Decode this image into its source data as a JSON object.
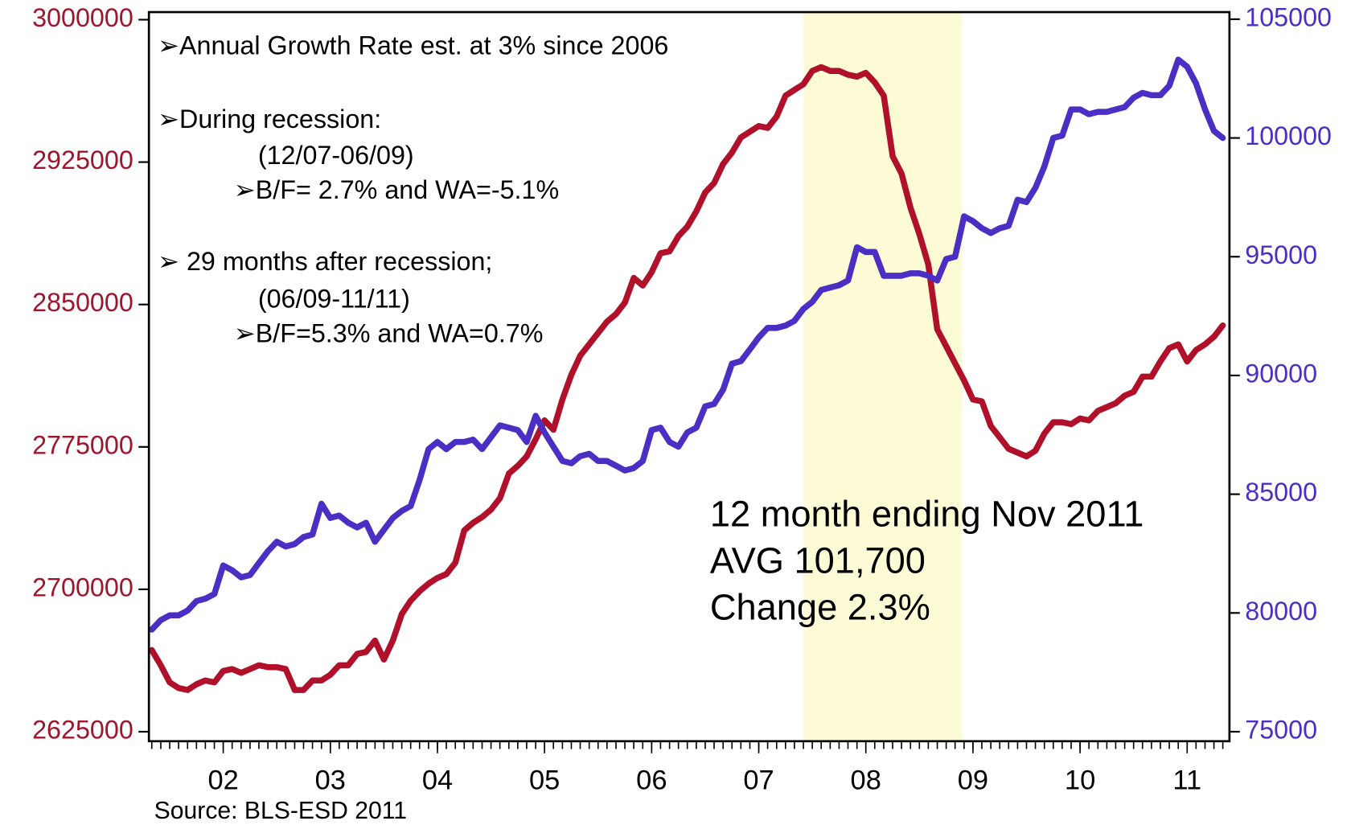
{
  "chart_data": {
    "type": "line",
    "annotations": [
      "➢Annual Growth Rate est. at 3% since 2006",
      "➢During recession:",
      "(12/07-06/09)",
      "➢B/F= 2.7% and WA=-5.1%",
      "➢ 29 months after recession;",
      "(06/09-11/11)",
      "➢B/F=5.3% and WA=0.7%"
    ],
    "callout": [
      "12 month ending Nov 2011",
      "AVG 101,700",
      "Change 2.3%"
    ],
    "source": "Source: BLS-ESD 2011",
    "recession": {
      "start": 2007.917,
      "end": 2009.4,
      "color": "#fdfbd6"
    },
    "x": [
      2001.833,
      2001.917,
      2002,
      2002.083,
      2002.167,
      2002.25,
      2002.333,
      2002.417,
      2002.5,
      2002.583,
      2002.667,
      2002.75,
      2002.833,
      2002.917,
      2003,
      2003.083,
      2003.167,
      2003.25,
      2003.333,
      2003.417,
      2003.5,
      2003.583,
      2003.667,
      2003.75,
      2003.833,
      2003.917,
      2004,
      2004.083,
      2004.167,
      2004.25,
      2004.333,
      2004.417,
      2004.5,
      2004.583,
      2004.667,
      2004.75,
      2004.833,
      2004.917,
      2005,
      2005.083,
      2005.167,
      2005.25,
      2005.333,
      2005.417,
      2005.5,
      2005.583,
      2005.667,
      2005.75,
      2005.833,
      2005.917,
      2006,
      2006.083,
      2006.167,
      2006.25,
      2006.333,
      2006.417,
      2006.5,
      2006.583,
      2006.667,
      2006.75,
      2006.833,
      2006.917,
      2007,
      2007.083,
      2007.167,
      2007.25,
      2007.333,
      2007.417,
      2007.5,
      2007.583,
      2007.667,
      2007.75,
      2007.833,
      2007.917,
      2008,
      2008.083,
      2008.167,
      2008.25,
      2008.333,
      2008.417,
      2008.5,
      2008.583,
      2008.667,
      2008.75,
      2008.833,
      2008.917,
      2009,
      2009.083,
      2009.167,
      2009.25,
      2009.333,
      2009.417,
      2009.5,
      2009.583,
      2009.667,
      2009.75,
      2009.833,
      2009.917,
      2010,
      2010.083,
      2010.167,
      2010.25,
      2010.333,
      2010.417,
      2010.5,
      2010.583,
      2010.667,
      2010.75,
      2010.833,
      2010.917,
      2011,
      2011.083,
      2011.167,
      2011.25,
      2011.333,
      2011.417,
      2011.5,
      2011.583,
      2011.667,
      2011.75,
      2011.833
    ],
    "series": [
      {
        "color": "#b0102a",
        "values": [
          2668000,
          2660000,
          2651000,
          2648000,
          2647000,
          2650000,
          2652000,
          2651000,
          2657000,
          2658000,
          2656000,
          2658000,
          2660000,
          2659000,
          2659000,
          2658000,
          2647000,
          2647000,
          2652000,
          2652000,
          2655000,
          2660000,
          2660000,
          2666000,
          2667000,
          2673000,
          2663000,
          2673000,
          2687000,
          2694000,
          2699000,
          2703000,
          2706000,
          2708000,
          2714000,
          2731000,
          2735000,
          2738000,
          2742000,
          2748000,
          2761000,
          2765000,
          2770000,
          2779000,
          2789000,
          2784000,
          2800000,
          2813000,
          2823000,
          2829000,
          2835000,
          2841000,
          2845000,
          2851000,
          2864000,
          2860000,
          2867000,
          2877000,
          2878000,
          2886000,
          2891000,
          2899000,
          2909000,
          2914000,
          2924000,
          2930000,
          2938000,
          2941000,
          2944000,
          2943000,
          2949000,
          2960000,
          2963000,
          2966000,
          2973000,
          2975000,
          2973000,
          2973000,
          2971000,
          2970000,
          2972000,
          2967000,
          2960000,
          2928000,
          2919000,
          2901000,
          2887000,
          2871000,
          2837000,
          2828000,
          2819000,
          2810000,
          2800000,
          2799000,
          2786000,
          2780000,
          2774000,
          2772000,
          2770000,
          2773000,
          2782000,
          2788000,
          2788000,
          2787000,
          2790000,
          2789000,
          2794000,
          2796000,
          2798000,
          2802000,
          2804000,
          2812000,
          2812000,
          2820000,
          2827000,
          2829000,
          2820000,
          2826000,
          2829000,
          2833000,
          2839000
        ]
      },
      {
        "color": "#4b2fc4",
        "axis": "y2",
        "values": [
          79300,
          79700,
          79900,
          79900,
          80100,
          80500,
          80600,
          80800,
          82000,
          81800,
          81500,
          81600,
          82100,
          82600,
          83000,
          82800,
          82900,
          83200,
          83300,
          84600,
          84000,
          84100,
          83800,
          83600,
          83800,
          83000,
          83500,
          84000,
          84300,
          84500,
          85600,
          86900,
          87200,
          86900,
          87200,
          87200,
          87300,
          86900,
          87400,
          87900,
          87800,
          87700,
          87200,
          88300,
          87600,
          87000,
          86400,
          86300,
          86600,
          86700,
          86400,
          86400,
          86200,
          86000,
          86100,
          86400,
          87700,
          87800,
          87200,
          87000,
          87600,
          87800,
          88700,
          88800,
          89400,
          90500,
          90600,
          91100,
          91600,
          92000,
          92000,
          92100,
          92300,
          92800,
          93100,
          93600,
          93700,
          93800,
          94000,
          95400,
          95200,
          95200,
          94200,
          94200,
          94200,
          94300,
          94300,
          94200,
          94000,
          94900,
          95000,
          96700,
          96500,
          96200,
          96000,
          96200,
          96300,
          97400,
          97300,
          97900,
          98800,
          100000,
          100100,
          101200,
          101200,
          101000,
          101100,
          101100,
          101200,
          101300,
          101700,
          101900,
          101800,
          101800,
          102200,
          103300,
          103000,
          102300,
          101200,
          100300,
          100000
        ]
      }
    ],
    "xlim": [
      2001.806,
      2011.895
    ],
    "xticks": [
      {
        "value": 2002.5,
        "label": "02"
      },
      {
        "value": 2003.5,
        "label": "03"
      },
      {
        "value": 2004.5,
        "label": "04"
      },
      {
        "value": 2005.5,
        "label": "05"
      },
      {
        "value": 2006.5,
        "label": "06"
      },
      {
        "value": 2007.5,
        "label": "07"
      },
      {
        "value": 2008.5,
        "label": "08"
      },
      {
        "value": 2009.5,
        "label": "09"
      },
      {
        "value": 2010.5,
        "label": "10"
      },
      {
        "value": 2011.5,
        "label": "11"
      }
    ],
    "ylim": [
      2620000,
      3004000
    ],
    "yticks": [
      2625000,
      2700000,
      2775000,
      2850000,
      2925000,
      3000000
    ],
    "ycolor": "#a0142c",
    "y2lim": [
      74600,
      105300
    ],
    "y2ticks": [
      75000,
      80000,
      85000,
      90000,
      95000,
      100000,
      105000
    ],
    "y2color": "#4b2fc4"
  }
}
